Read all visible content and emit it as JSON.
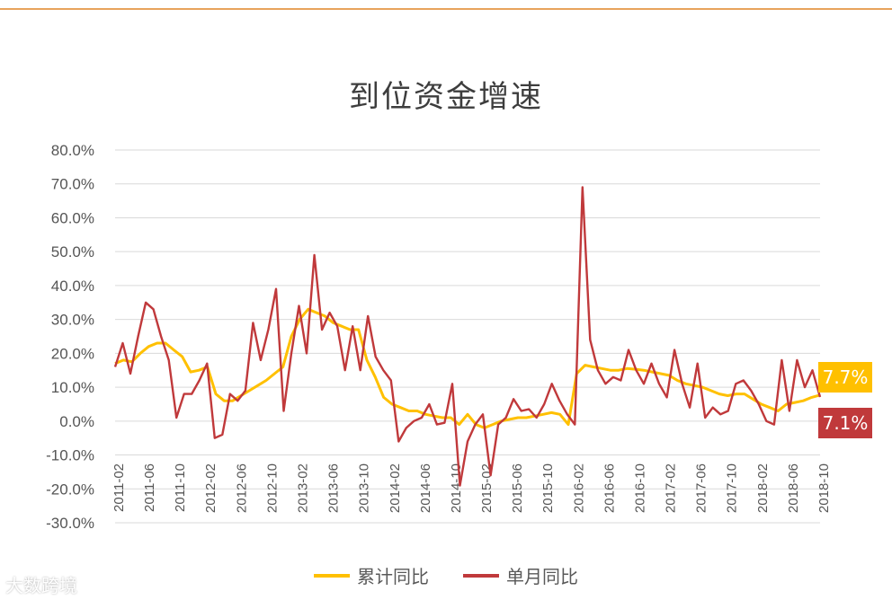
{
  "chart_data": {
    "type": "line",
    "title": "到位资金增速",
    "y_ticks": [
      "80.0%",
      "70.0%",
      "60.0%",
      "50.0%",
      "40.0%",
      "30.0%",
      "20.0%",
      "10.0%",
      "0.0%",
      "-10.0%",
      "-20.0%",
      "-30.0%"
    ],
    "ylim": [
      -30,
      80
    ],
    "x_tick_labels": [
      "2011-02",
      "2011-06",
      "2011-10",
      "2012-02",
      "2012-06",
      "2012-10",
      "2013-02",
      "2013-06",
      "2013-10",
      "2014-02",
      "2014-06",
      "2014-10",
      "2015-02",
      "2015-06",
      "2015-10",
      "2016-02",
      "2016-06",
      "2016-10",
      "2017-02",
      "2017-06",
      "2017-10",
      "2018-02",
      "2018-06",
      "2018-10"
    ],
    "grid": true,
    "legend_position": "bottom",
    "series": [
      {
        "name": "累计同比",
        "color": "#ffc000",
        "values": [
          17,
          18,
          17.5,
          20,
          22,
          23,
          23,
          21,
          19,
          14.5,
          15,
          16,
          8,
          6,
          6,
          7.5,
          9,
          10.5,
          12,
          14,
          16,
          25,
          30,
          33,
          32,
          31,
          29,
          28,
          27,
          27,
          18,
          13,
          7,
          5,
          4,
          3,
          3,
          2,
          1.5,
          1,
          1,
          -1,
          2,
          -1,
          -2,
          -1,
          0,
          0.5,
          1,
          1,
          1.5,
          2,
          2.5,
          2,
          -1,
          14,
          16.5,
          16,
          15.5,
          15,
          15,
          15.5,
          15.3,
          15,
          14.5,
          14,
          13.5,
          12,
          11,
          10.5,
          10,
          9,
          8,
          7.5,
          8,
          8,
          6.5,
          5,
          4,
          3,
          5,
          5.5,
          6,
          7,
          7.7
        ]
      },
      {
        "name": "单月同比",
        "color": "#c0393b",
        "values": [
          16,
          23,
          14,
          25,
          35,
          33,
          25,
          18,
          1,
          8,
          8,
          12,
          17,
          -5,
          -4,
          8,
          6,
          9,
          29,
          18,
          27,
          39,
          3,
          20,
          34,
          20,
          49,
          27,
          32,
          28,
          15,
          28,
          15,
          31,
          19,
          15,
          12,
          -6,
          -2,
          0,
          1,
          5,
          -1,
          -0.5,
          11,
          -19,
          -6,
          -1,
          2,
          -16,
          -1,
          1,
          6.5,
          3,
          3.5,
          1,
          5,
          11,
          6,
          2,
          -1,
          69,
          24,
          15,
          11,
          13,
          12,
          21,
          15,
          11,
          17,
          11,
          7,
          21,
          11,
          4,
          17,
          1,
          4,
          2,
          3,
          11,
          12,
          9,
          5,
          0,
          -1,
          18,
          3,
          18,
          10,
          15,
          7.1
        ]
      }
    ]
  },
  "callouts": {
    "cumulative": "7.7%",
    "monthly": "7.1%"
  },
  "watermark": "大数跨境"
}
